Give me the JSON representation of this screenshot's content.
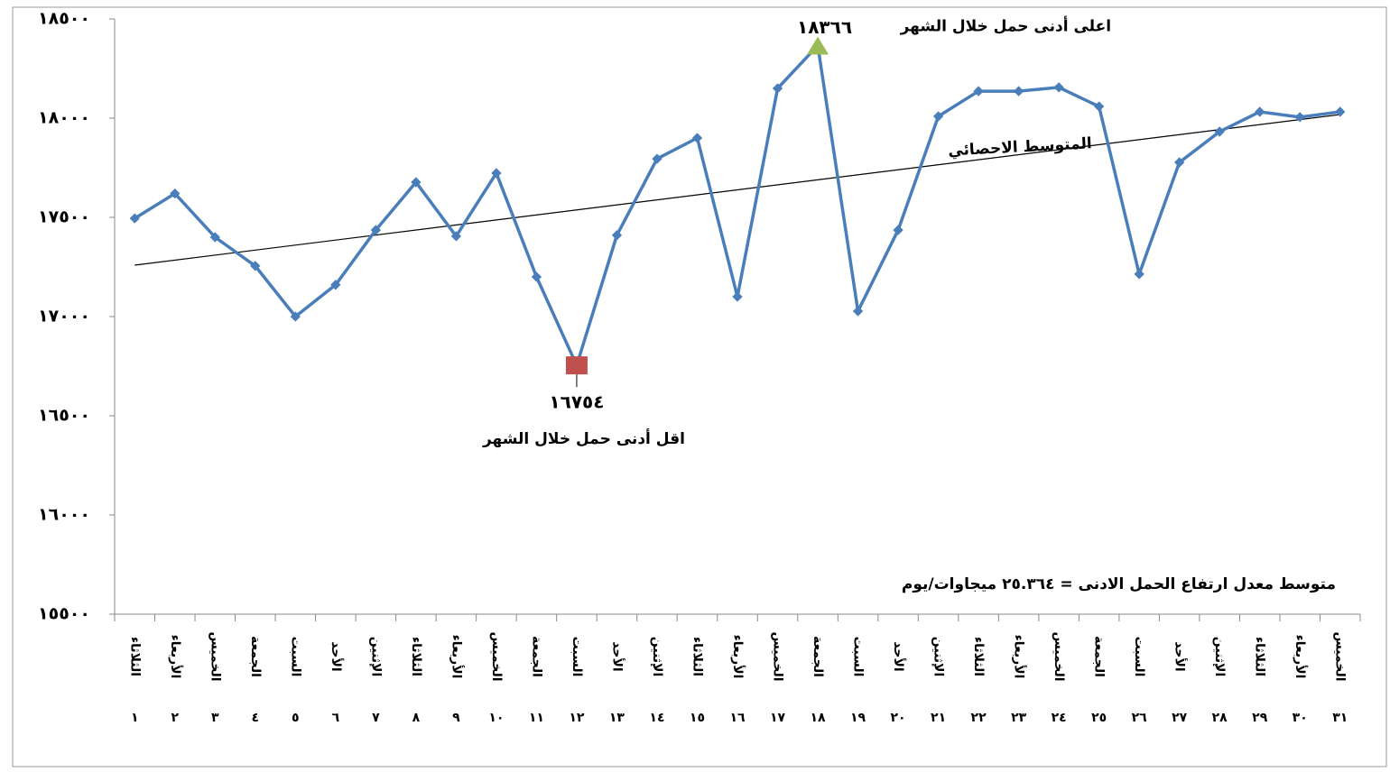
{
  "chart_data": {
    "type": "line",
    "categories": [
      "الثلاثاء",
      "الأربعاء",
      "الخميس",
      "الجمعة",
      "السبت",
      "الأحد",
      "الإثنين",
      "الثلاثاء",
      "الأربعاء",
      "الخميس",
      "الجمعة",
      "السبت",
      "الأحد",
      "الإثنين",
      "الثلاثاء",
      "الأربعاء",
      "الخميس",
      "الجمعة",
      "السبت",
      "الأحد",
      "الإثنين",
      "الثلاثاء",
      "الأربعاء",
      "الخميس",
      "الجمعة",
      "السبت",
      "الأحد",
      "الإثنين",
      "الثلاثاء",
      "الأربعاء",
      "الخميس"
    ],
    "day_numbers": [
      "١",
      "٢",
      "٣",
      "٤",
      "٥",
      "٦",
      "٧",
      "٨",
      "٩",
      "١٠",
      "١١",
      "١٢",
      "١٣",
      "١٤",
      "١٥",
      "١٦",
      "١٧",
      "١٨",
      "١٩",
      "٢٠",
      "٢١",
      "٢٢",
      "٢٣",
      "٢٤",
      "٢٥",
      "٢٦",
      "٢٧",
      "٢٨",
      "٢٩",
      "٣٠",
      "٣١"
    ],
    "series": [
      {
        "color": "#4a7ebb",
        "values": [
          17495,
          17620,
          17400,
          17255,
          17000,
          17160,
          17436,
          17677,
          17405,
          17723,
          17200,
          16754,
          17410,
          17795,
          17900,
          17100,
          18150,
          18366,
          17027,
          17436,
          18009,
          18136,
          18136,
          18155,
          18059,
          17214,
          17777,
          17932,
          18032,
          18005,
          18032
        ],
        "value_labels": [
          null,
          null,
          null,
          null,
          null,
          null,
          null,
          null,
          null,
          null,
          null,
          "١٦٧٥٤",
          null,
          null,
          null,
          null,
          null,
          "١٨٣٦٦",
          null,
          null,
          null,
          null,
          null,
          null,
          null,
          null,
          null,
          null,
          null,
          null,
          null
        ]
      }
    ],
    "min_color": "#c0504d",
    "max_color": "#9bbb59",
    "trendline": {
      "name": "المتوسط الاحصائي",
      "start": 17259,
      "end": 18018,
      "color": "#000000"
    },
    "annotations": {
      "max_text": "اعلى  أدنى حمل خلال الشهر",
      "min_text": "اقل  أدنى حمل خلال الشهر",
      "note": "متوسط معدل ارتفاع الحمل الادنى = ٢٥.٣٦٤ ميجاوات/يوم"
    },
    "ylim": [
      15500,
      18500
    ],
    "yticks": [
      {
        "value": 15500,
        "label": "١٥٥٠٠"
      },
      {
        "value": 16000,
        "label": "١٦٠٠٠"
      },
      {
        "value": 16500,
        "label": "١٦٥٠٠"
      },
      {
        "value": 17000,
        "label": "١٧٠٠٠"
      },
      {
        "value": 17500,
        "label": "١٧٥٠٠"
      },
      {
        "value": 18000,
        "label": "١٨٠٠٠"
      },
      {
        "value": 18500,
        "label": "١٨٥٠٠"
      }
    ],
    "grid": false
  }
}
